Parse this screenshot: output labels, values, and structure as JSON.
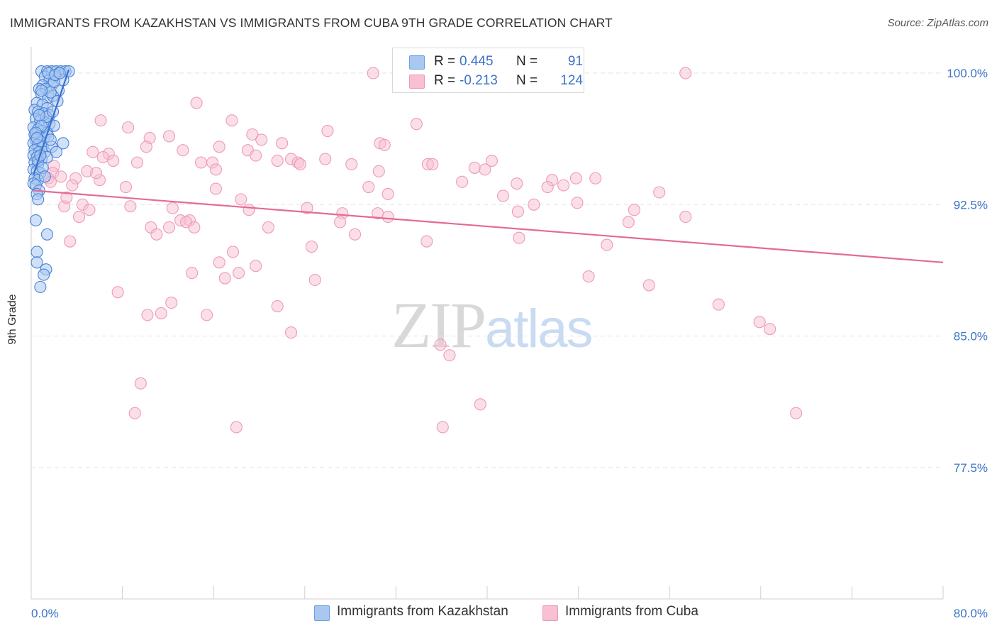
{
  "title": "IMMIGRANTS FROM KAZAKHSTAN VS IMMIGRANTS FROM CUBA 9TH GRADE CORRELATION CHART",
  "source": "Source: ZipAtlas.com",
  "watermark": {
    "zip": "ZIP",
    "atlas": "atlas"
  },
  "legend": {
    "rows": [
      {
        "r_label": "R =",
        "r_value": "0.445",
        "n_label": "N =",
        "n_value": "91",
        "color": "#a9c8f0",
        "stroke": "#6e9fe0"
      },
      {
        "r_label": "R =",
        "r_value": "-0.213",
        "n_label": "N =",
        "n_value": "124",
        "color": "#f8c0d2",
        "stroke": "#ee9ab6"
      }
    ]
  },
  "bottom_legend": [
    {
      "label": "Immigrants from Kazakhstan",
      "color": "#a9c8f0",
      "stroke": "#6e9fe0"
    },
    {
      "label": "Immigrants from Cuba",
      "color": "#f8c0d2",
      "stroke": "#ee9ab6"
    }
  ],
  "chart_data": {
    "type": "scatter",
    "title": "IMMIGRANTS FROM KAZAKHSTAN VS IMMIGRANTS FROM CUBA 9TH GRADE CORRELATION CHART",
    "xlabel": "",
    "ylabel": "9th Grade",
    "xlim": [
      0,
      80
    ],
    "ylim": [
      70,
      101.5
    ],
    "x_tick_labels": [
      {
        "value": 0,
        "label": "0.0%"
      },
      {
        "value": 80,
        "label": "80.0%"
      }
    ],
    "y_ticks": [
      {
        "value": 100,
        "label": "100.0%"
      },
      {
        "value": 92.5,
        "label": "92.5%"
      },
      {
        "value": 85,
        "label": "85.0%"
      },
      {
        "value": 77.5,
        "label": "77.5%"
      }
    ],
    "grid": true,
    "series": [
      {
        "name": "Immigrants from Kazakhstan",
        "color": "#a9c8f0",
        "stroke": "#4a82d8",
        "trend_color": "#3a70d0",
        "trend": [
          [
            0.2,
            94.2
          ],
          [
            3.3,
            100.2
          ]
        ],
        "points": [
          [
            0.9,
            100.1
          ],
          [
            1.4,
            100.1
          ],
          [
            1.8,
            100.1
          ],
          [
            2.2,
            100.1
          ],
          [
            2.6,
            100.1
          ],
          [
            3.0,
            100.1
          ],
          [
            3.3,
            100.1
          ],
          [
            1.2,
            99.8
          ],
          [
            2.0,
            99.8
          ],
          [
            2.8,
            99.6
          ],
          [
            1.6,
            99.6
          ],
          [
            1.0,
            99.3
          ],
          [
            1.8,
            99.3
          ],
          [
            0.7,
            99.1
          ],
          [
            1.3,
            99.1
          ],
          [
            2.4,
            99.0
          ],
          [
            0.9,
            98.8
          ],
          [
            1.5,
            98.6
          ],
          [
            1.9,
            98.7
          ],
          [
            0.5,
            98.3
          ],
          [
            1.0,
            98.2
          ],
          [
            1.4,
            98.0
          ],
          [
            0.3,
            97.9
          ],
          [
            0.6,
            97.8
          ],
          [
            1.1,
            97.7
          ],
          [
            1.6,
            97.6
          ],
          [
            0.4,
            97.4
          ],
          [
            0.8,
            97.3
          ],
          [
            1.2,
            97.2
          ],
          [
            1.6,
            97.1
          ],
          [
            2.0,
            97.0
          ],
          [
            0.2,
            96.9
          ],
          [
            0.6,
            96.8
          ],
          [
            1.0,
            96.7
          ],
          [
            1.4,
            96.6
          ],
          [
            0.3,
            96.5
          ],
          [
            0.7,
            96.4
          ],
          [
            1.1,
            96.3
          ],
          [
            1.5,
            96.4
          ],
          [
            0.4,
            96.2
          ],
          [
            0.8,
            96.1
          ],
          [
            0.2,
            96.0
          ],
          [
            0.6,
            95.9
          ],
          [
            1.0,
            95.8
          ],
          [
            2.8,
            96.0
          ],
          [
            0.3,
            95.6
          ],
          [
            0.7,
            95.5
          ],
          [
            1.2,
            95.5
          ],
          [
            1.8,
            95.8
          ],
          [
            0.2,
            95.3
          ],
          [
            0.5,
            95.2
          ],
          [
            0.9,
            95.1
          ],
          [
            1.4,
            95.2
          ],
          [
            0.3,
            94.9
          ],
          [
            0.6,
            94.8
          ],
          [
            0.2,
            94.5
          ],
          [
            0.5,
            94.4
          ],
          [
            0.8,
            94.3
          ],
          [
            0.3,
            94.0
          ],
          [
            0.6,
            93.9
          ],
          [
            0.2,
            93.7
          ],
          [
            0.4,
            93.6
          ],
          [
            0.7,
            93.3
          ],
          [
            0.5,
            93.1
          ],
          [
            0.6,
            92.8
          ],
          [
            0.4,
            91.6
          ],
          [
            1.4,
            90.8
          ],
          [
            0.5,
            89.8
          ],
          [
            0.5,
            89.2
          ],
          [
            1.3,
            88.8
          ],
          [
            1.1,
            88.5
          ],
          [
            0.8,
            87.8
          ],
          [
            2.0,
            99.5
          ],
          [
            1.7,
            98.9
          ],
          [
            2.3,
            98.4
          ],
          [
            1.3,
            97.5
          ],
          [
            0.9,
            97.0
          ],
          [
            1.7,
            96.2
          ],
          [
            2.2,
            95.5
          ],
          [
            0.6,
            95.0
          ],
          [
            1.0,
            94.6
          ],
          [
            0.4,
            96.6
          ],
          [
            0.9,
            99.0
          ],
          [
            1.5,
            100.0
          ],
          [
            2.1,
            99.9
          ],
          [
            2.5,
            100.0
          ],
          [
            0.8,
            95.3
          ],
          [
            1.2,
            94.1
          ],
          [
            0.7,
            97.6
          ],
          [
            1.9,
            97.8
          ],
          [
            0.5,
            96.3
          ]
        ]
      },
      {
        "name": "Immigrants from Cuba",
        "color": "#f8c0d2",
        "stroke": "#ee9ab6",
        "trend_color": "#e46a96",
        "trend": [
          [
            0.2,
            93.3
          ],
          [
            80,
            89.2
          ]
        ],
        "points": [
          [
            30.0,
            100.0
          ],
          [
            57.4,
            100.0
          ],
          [
            14.5,
            98.3
          ],
          [
            6.1,
            97.3
          ],
          [
            17.6,
            97.3
          ],
          [
            33.8,
            97.1
          ],
          [
            8.5,
            96.9
          ],
          [
            26.0,
            96.7
          ],
          [
            19.4,
            96.5
          ],
          [
            10.4,
            96.3
          ],
          [
            12.1,
            96.4
          ],
          [
            20.2,
            96.2
          ],
          [
            22.0,
            96.0
          ],
          [
            30.6,
            96.0
          ],
          [
            10.1,
            95.8
          ],
          [
            16.5,
            95.8
          ],
          [
            13.3,
            95.6
          ],
          [
            19.0,
            95.6
          ],
          [
            5.4,
            95.5
          ],
          [
            6.8,
            95.4
          ],
          [
            6.3,
            95.2
          ],
          [
            19.7,
            95.3
          ],
          [
            22.8,
            95.1
          ],
          [
            21.6,
            95.0
          ],
          [
            23.4,
            94.9
          ],
          [
            7.2,
            95.0
          ],
          [
            9.3,
            94.9
          ],
          [
            14.9,
            94.9
          ],
          [
            15.9,
            94.9
          ],
          [
            23.6,
            94.8
          ],
          [
            28.1,
            94.8
          ],
          [
            34.8,
            94.8
          ],
          [
            35.2,
            94.8
          ],
          [
            40.4,
            95.0
          ],
          [
            38.9,
            94.6
          ],
          [
            39.8,
            94.5
          ],
          [
            16.2,
            94.5
          ],
          [
            2.0,
            94.7
          ],
          [
            4.9,
            94.4
          ],
          [
            30.5,
            94.4
          ],
          [
            1.9,
            94.3
          ],
          [
            2.6,
            94.1
          ],
          [
            3.9,
            94.0
          ],
          [
            6.0,
            93.9
          ],
          [
            1.5,
            94.0
          ],
          [
            1.7,
            93.8
          ],
          [
            37.8,
            93.8
          ],
          [
            45.7,
            93.9
          ],
          [
            47.8,
            94.0
          ],
          [
            49.5,
            94.0
          ],
          [
            42.6,
            93.7
          ],
          [
            46.7,
            93.6
          ],
          [
            3.6,
            93.6
          ],
          [
            8.3,
            93.5
          ],
          [
            16.2,
            93.4
          ],
          [
            29.6,
            93.5
          ],
          [
            31.3,
            93.1
          ],
          [
            41.4,
            93.0
          ],
          [
            55.1,
            93.2
          ],
          [
            18.4,
            92.8
          ],
          [
            4.5,
            92.5
          ],
          [
            2.9,
            92.4
          ],
          [
            8.7,
            92.4
          ],
          [
            12.4,
            92.3
          ],
          [
            24.2,
            92.3
          ],
          [
            44.1,
            92.5
          ],
          [
            47.9,
            92.6
          ],
          [
            52.9,
            92.2
          ],
          [
            5.1,
            92.2
          ],
          [
            19.1,
            92.2
          ],
          [
            27.3,
            92.0
          ],
          [
            30.4,
            92.0
          ],
          [
            31.3,
            91.8
          ],
          [
            42.7,
            92.1
          ],
          [
            57.4,
            91.8
          ],
          [
            4.2,
            91.8
          ],
          [
            13.1,
            91.6
          ],
          [
            13.9,
            91.6
          ],
          [
            10.5,
            91.2
          ],
          [
            11.0,
            90.8
          ],
          [
            12.1,
            91.2
          ],
          [
            13.6,
            91.5
          ],
          [
            14.3,
            91.2
          ],
          [
            20.8,
            91.2
          ],
          [
            27.1,
            91.5
          ],
          [
            52.4,
            91.5
          ],
          [
            28.4,
            90.8
          ],
          [
            3.4,
            90.4
          ],
          [
            34.7,
            90.4
          ],
          [
            42.8,
            90.6
          ],
          [
            50.5,
            90.2
          ],
          [
            24.6,
            90.1
          ],
          [
            17.7,
            89.8
          ],
          [
            16.5,
            89.2
          ],
          [
            19.7,
            89.0
          ],
          [
            14.1,
            88.6
          ],
          [
            18.2,
            88.6
          ],
          [
            17.0,
            88.3
          ],
          [
            24.9,
            88.2
          ],
          [
            48.9,
            88.4
          ],
          [
            54.2,
            87.9
          ],
          [
            7.6,
            87.5
          ],
          [
            12.3,
            86.9
          ],
          [
            21.6,
            86.7
          ],
          [
            10.2,
            86.2
          ],
          [
            11.4,
            86.3
          ],
          [
            15.4,
            86.2
          ],
          [
            60.3,
            86.8
          ],
          [
            64.8,
            85.4
          ],
          [
            63.9,
            85.8
          ],
          [
            22.8,
            85.2
          ],
          [
            35.9,
            84.5
          ],
          [
            36.7,
            83.9
          ],
          [
            9.6,
            82.3
          ],
          [
            9.1,
            80.6
          ],
          [
            39.4,
            81.1
          ],
          [
            18.0,
            79.8
          ],
          [
            36.1,
            79.8
          ],
          [
            67.1,
            80.6
          ],
          [
            31.0,
            95.9
          ],
          [
            5.7,
            94.3
          ],
          [
            25.8,
            95.1
          ],
          [
            3.1,
            92.9
          ],
          [
            45.3,
            93.5
          ]
        ]
      }
    ]
  }
}
